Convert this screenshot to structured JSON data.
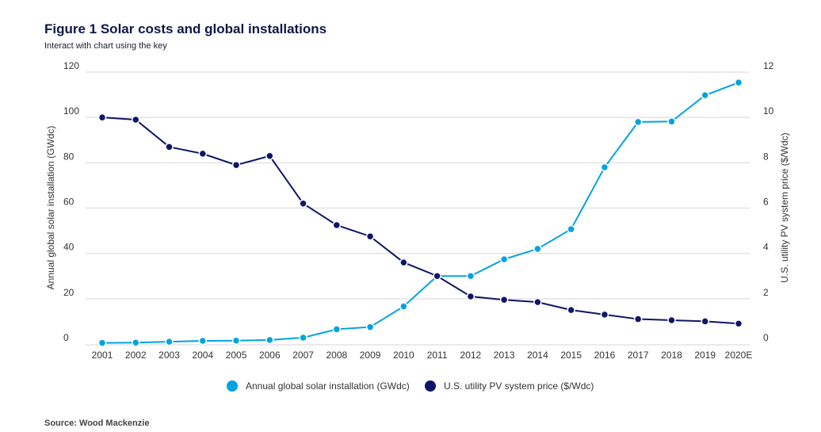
{
  "title": "Figure 1  Solar costs and global installations",
  "subtitle": "Interact with chart using the key",
  "source": "Source: Wood Mackenzie",
  "chart_data": {
    "type": "line",
    "title": "Figure 1  Solar costs and global installations",
    "categories": [
      "2001",
      "2002",
      "2003",
      "2004",
      "2005",
      "2006",
      "2007",
      "2008",
      "2009",
      "2010",
      "2011",
      "2012",
      "2013",
      "2014",
      "2015",
      "2016",
      "2017",
      "2018",
      "2019",
      "2020E"
    ],
    "ylabel_left": "Annual global solar installation (GWdc)",
    "ylabel_right": "U.S. utility PV system price ($/Wdc)",
    "ylim_left": [
      0,
      120
    ],
    "yticks_left": [
      0,
      20,
      40,
      60,
      80,
      100,
      120
    ],
    "ylim_right": [
      0,
      12
    ],
    "yticks_right": [
      0,
      2,
      4,
      6,
      8,
      10,
      12
    ],
    "grid": true,
    "legend": "bottom",
    "series": [
      {
        "name": "Annual global solar installation (GWdc)",
        "axis": "left",
        "color": "#00a3e0",
        "values": [
          0.5,
          0.6,
          1,
          1.4,
          1.5,
          1.8,
          2.8,
          6.5,
          7.5,
          16.6,
          30,
          30,
          37.4,
          42,
          50.7,
          78,
          98,
          98.2,
          109.8,
          115.4
        ]
      },
      {
        "name": "U.S. utility PV system price ($/Wdc)",
        "axis": "right",
        "color": "#0f1566",
        "values": [
          10.0,
          9.9,
          8.7,
          8.4,
          7.9,
          8.3,
          6.2,
          5.25,
          4.75,
          3.6,
          3.0,
          2.1,
          1.95,
          1.85,
          1.5,
          1.3,
          1.1,
          1.05,
          1.0,
          0.9
        ]
      }
    ]
  }
}
